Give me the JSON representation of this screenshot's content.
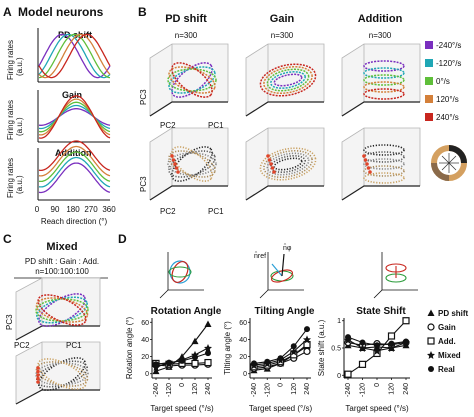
{
  "panels": {
    "A": {
      "letter": "A",
      "title": "Model neurons",
      "rows": [
        {
          "title": "PD shift",
          "ylabel1": "Firing rates",
          "ylabel2": "(a.u.)"
        },
        {
          "title": "Gain",
          "ylabel1": "Firing rates",
          "ylabel2": "(a.u.)"
        },
        {
          "title": "Addition",
          "ylabel1": "Firing rates",
          "ylabel2": "(a.u.)"
        }
      ],
      "xticks": [
        "0",
        "90",
        "180",
        "270",
        "360"
      ],
      "xlabel": "Reach direction (°)"
    },
    "B": {
      "letter": "B",
      "columns": [
        {
          "title": "PD shift",
          "n": "n=300"
        },
        {
          "title": "Gain",
          "n": "n=300"
        },
        {
          "title": "Addition",
          "n": "n=300"
        }
      ],
      "axis_labels": {
        "pc1": "PC1",
        "pc2": "PC2",
        "pc3": "PC3"
      },
      "legend": [
        {
          "label": "-240°/s",
          "color": "#7a2fbf"
        },
        {
          "label": "-120°/s",
          "color": "#1fa7b5"
        },
        {
          "label": "0°/s",
          "color": "#5fbf3a"
        },
        {
          "label": "120°/s",
          "color": "#d4803a"
        },
        {
          "label": "240°/s",
          "color": "#c8261e"
        }
      ]
    },
    "C": {
      "letter": "C",
      "title": "Mixed",
      "subtitle": "PD shift : Gain : Add.",
      "ratio": "n=100:100:100",
      "axis_labels": {
        "pc1": "PC1",
        "pc2": "PC2",
        "pc3": "PC3"
      }
    },
    "D": {
      "letter": "D",
      "vector_labels": {
        "n_ref": "n̂ref",
        "n_phi": "n̂φ"
      },
      "subplots": [
        {
          "title": "Rotation Angle",
          "ylabel": "Rotation angle (°)",
          "yticks": [
            "60",
            "40",
            "20",
            "0"
          ]
        },
        {
          "title": "Tilting Angle",
          "ylabel": "Tilting angle (°)",
          "yticks": [
            "60",
            "40",
            "20",
            "0"
          ]
        },
        {
          "title": "State Shift",
          "ylabel": "State shift (a.u.)",
          "yticks": [
            "1",
            "0.5",
            "0"
          ]
        }
      ],
      "xticks": [
        "-240",
        "-120",
        "0",
        "120",
        "240"
      ],
      "xlabel": "Target speed (°/s)",
      "legend": [
        "PD shift",
        "Gain",
        "Add.",
        "Mixed",
        "Real"
      ]
    }
  },
  "chart_data": [
    {
      "type": "line",
      "title": "Rotation Angle",
      "xlabel": "Target speed (°/s)",
      "ylabel": "Rotation angle (°)",
      "x": [
        -240,
        -120,
        0,
        120,
        240
      ],
      "ylim": [
        -5,
        65
      ],
      "series": [
        {
          "name": "PD shift",
          "values": [
            3,
            8,
            20,
            38,
            58
          ]
        },
        {
          "name": "Gain",
          "values": [
            10,
            9,
            10,
            10,
            11
          ]
        },
        {
          "name": "Add.",
          "values": [
            12,
            11,
            12,
            12,
            13
          ]
        },
        {
          "name": "Mixed",
          "values": [
            8,
            12,
            16,
            22,
            30
          ]
        },
        {
          "name": "Real",
          "values": [
            11,
            13,
            15,
            19,
            24
          ]
        }
      ]
    },
    {
      "type": "line",
      "title": "Tilting Angle",
      "xlabel": "Target speed (°/s)",
      "ylabel": "Tilting angle (°)",
      "x": [
        -240,
        -120,
        0,
        120,
        240
      ],
      "ylim": [
        -5,
        65
      ],
      "series": [
        {
          "name": "PD shift",
          "values": [
            4,
            6,
            12,
            22,
            32
          ]
        },
        {
          "name": "Gain",
          "values": [
            6,
            8,
            12,
            18,
            26
          ]
        },
        {
          "name": "Add.",
          "values": [
            8,
            10,
            14,
            22,
            34
          ]
        },
        {
          "name": "Mixed",
          "values": [
            10,
            12,
            16,
            26,
            40
          ]
        },
        {
          "name": "Real",
          "values": [
            12,
            14,
            18,
            32,
            52
          ]
        }
      ]
    },
    {
      "type": "line",
      "title": "State Shift",
      "xlabel": "Target speed (°/s)",
      "ylabel": "State shift (a.u.)",
      "x": [
        -240,
        -120,
        0,
        120,
        240
      ],
      "ylim": [
        -0.05,
        1.05
      ],
      "series": [
        {
          "name": "PD shift",
          "values": [
            0.55,
            0.5,
            0.52,
            0.5,
            0.55
          ]
        },
        {
          "name": "Gain",
          "values": [
            0.6,
            0.55,
            0.58,
            0.56,
            0.6
          ]
        },
        {
          "name": "Add.",
          "values": [
            0.02,
            0.2,
            0.4,
            0.72,
            1.0
          ]
        },
        {
          "name": "Mixed",
          "values": [
            0.65,
            0.5,
            0.45,
            0.5,
            0.6
          ]
        },
        {
          "name": "Real",
          "values": [
            0.7,
            0.6,
            0.55,
            0.58,
            0.62
          ]
        }
      ]
    }
  ]
}
